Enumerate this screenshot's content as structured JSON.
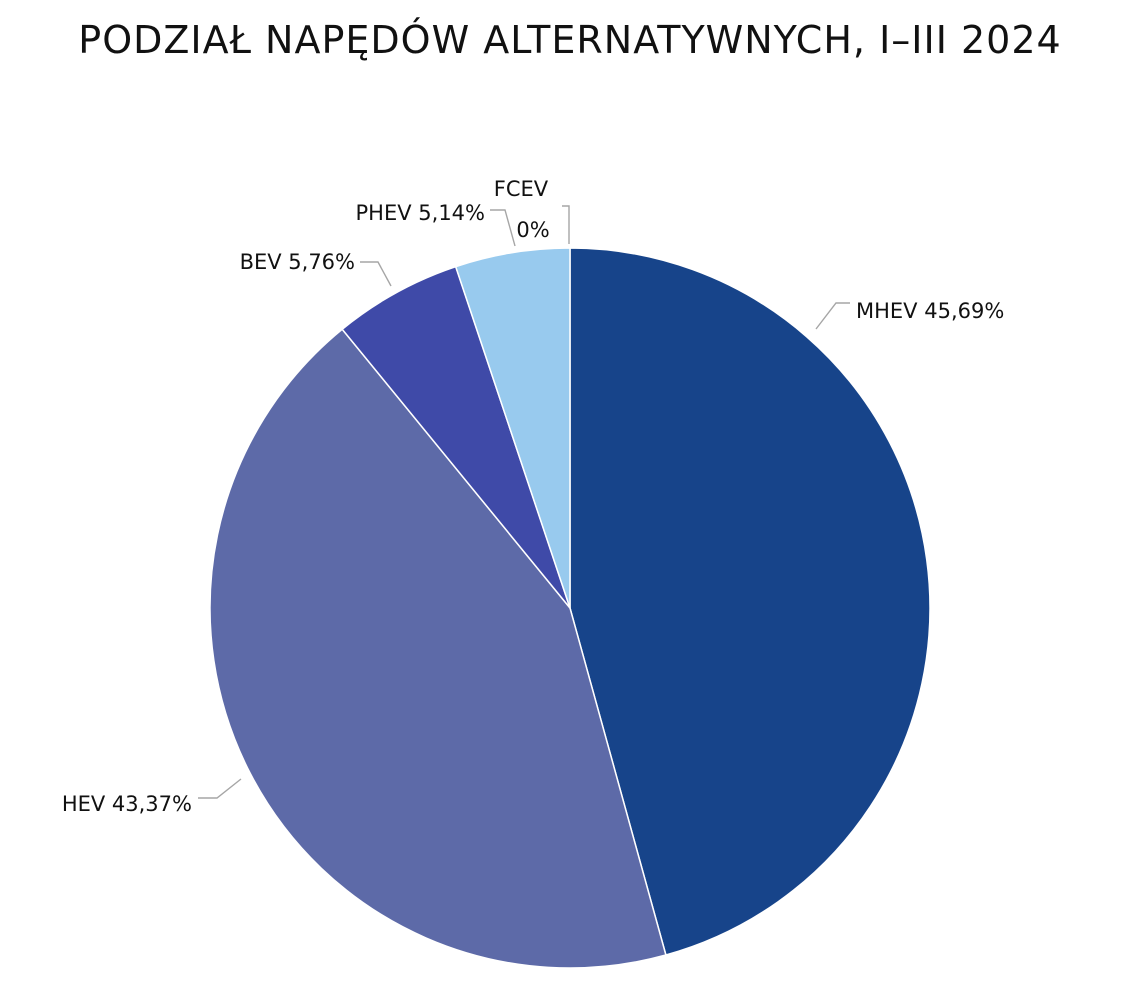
{
  "chart_data": {
    "type": "pie",
    "title": "PODZIAŁ NAPĘDÓW ALTERNATYWNYCH, I–III 2024",
    "slices": [
      {
        "label": "MHEV",
        "value": 45.69,
        "value_text": "45,69%",
        "color": "#17448a"
      },
      {
        "label": "HEV",
        "value": 43.37,
        "value_text": "43,37%",
        "color": "#5d6aa8"
      },
      {
        "label": "BEV",
        "value": 5.76,
        "value_text": "5,76%",
        "color": "#3f4aa8"
      },
      {
        "label": "PHEV",
        "value": 5.14,
        "value_text": "5,14%",
        "color": "#98caee"
      },
      {
        "label": "FCEV",
        "value": 0,
        "value_text": "0%",
        "color": "#c9dff5"
      }
    ],
    "legend": "none",
    "data_labels": "outside-with-leader-lines"
  }
}
